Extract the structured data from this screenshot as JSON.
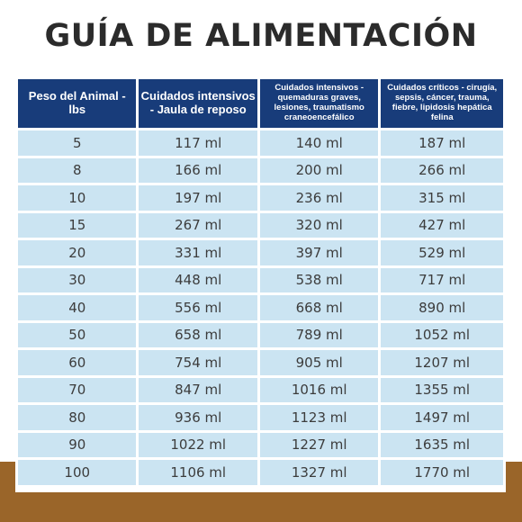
{
  "title": "GUÍA DE ALIMENTACIÓN",
  "colors": {
    "header_bg": "#183c7a",
    "cell_bg": "#cbe4f2",
    "brown_band": "#9a6529",
    "title_text": "#2b2b2b"
  },
  "table": {
    "headers": [
      "Peso del Animal - lbs",
      "Cuidados intensivos - Jaula de reposo",
      "Cuidados intensivos - quemaduras graves, lesiones, traumatismo craneoencefálico",
      "Cuidados críticos - cirugía, sepsis, cáncer, trauma, fiebre, lipidosis hepática felina"
    ],
    "rows": [
      [
        "5",
        "117 ml",
        "140 ml",
        "187 ml"
      ],
      [
        "8",
        "166 ml",
        "200 ml",
        "266 ml"
      ],
      [
        "10",
        "197 ml",
        "236 ml",
        "315 ml"
      ],
      [
        "15",
        "267 ml",
        "320 ml",
        "427 ml"
      ],
      [
        "20",
        "331 ml",
        "397 ml",
        "529 ml"
      ],
      [
        "30",
        "448 ml",
        "538 ml",
        "717 ml"
      ],
      [
        "40",
        "556 ml",
        "668 ml",
        "890 ml"
      ],
      [
        "50",
        "658 ml",
        "789 ml",
        "1052 ml"
      ],
      [
        "60",
        "754 ml",
        "905 ml",
        "1207 ml"
      ],
      [
        "70",
        "847 ml",
        "1016 ml",
        "1355 ml"
      ],
      [
        "80",
        "936 ml",
        "1123 ml",
        "1497 ml"
      ],
      [
        "90",
        "1022 ml",
        "1227 ml",
        "1635 ml"
      ],
      [
        "100",
        "1106 ml",
        "1327 ml",
        "1770 ml"
      ]
    ]
  }
}
